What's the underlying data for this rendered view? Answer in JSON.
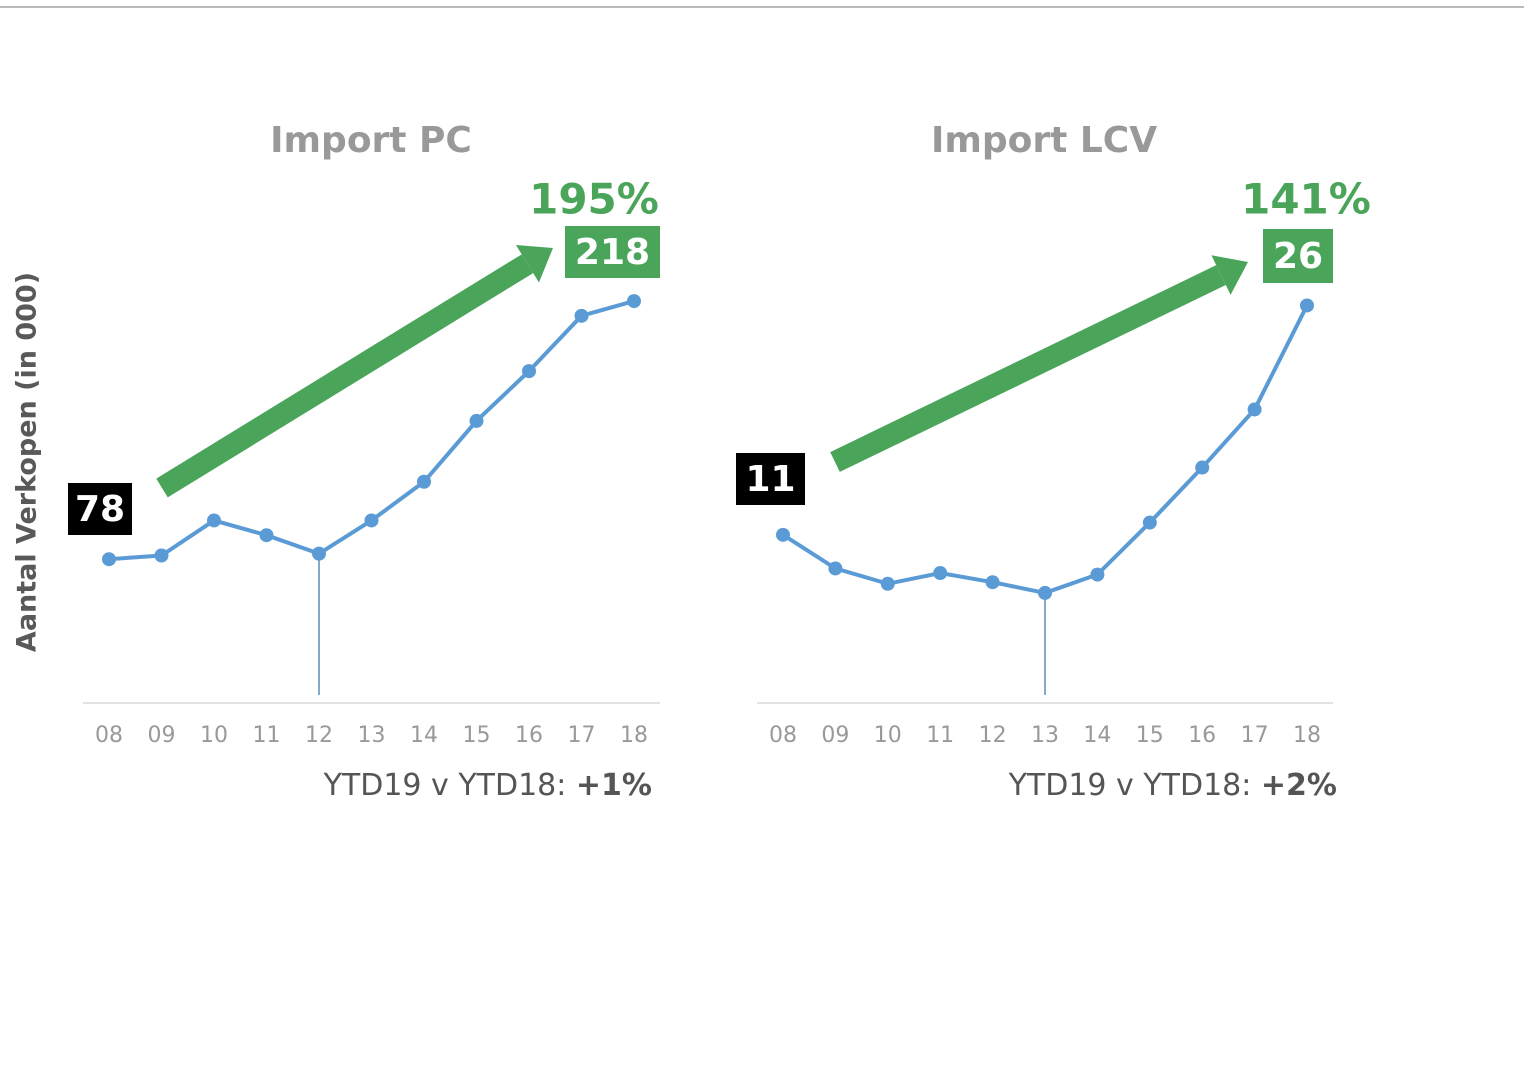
{
  "chart_data": [
    {
      "type": "line",
      "title": "Import PC",
      "ylabel": "Aantal Verkopen  (in 000)",
      "categories": [
        "08",
        "09",
        "10",
        "11",
        "12",
        "13",
        "14",
        "15",
        "16",
        "17",
        "18"
      ],
      "values": [
        78,
        80,
        99,
        91,
        81,
        99,
        120,
        153,
        180,
        210,
        218
      ],
      "color": "#5b9bd5",
      "ylim": [
        0,
        320
      ],
      "marker_category": "12",
      "annotation": "195%",
      "annotation_color": "#4aa55a",
      "footer_label": "YTD19 v YTD18:",
      "footer_value": "+1%"
    },
    {
      "type": "line",
      "title": "Import LCV",
      "categories": [
        "08",
        "09",
        "10",
        "11",
        "12",
        "13",
        "14",
        "15",
        "16",
        "17",
        "18"
      ],
      "values": [
        11,
        8.8,
        7.8,
        8.5,
        7.9,
        7.2,
        8.4,
        11.8,
        15.4,
        19.2,
        26
      ],
      "color": "#5b9bd5",
      "ylim": [
        0,
        38
      ],
      "marker_category": "13",
      "annotation": "141%",
      "annotation_color": "#4aa55a",
      "footer_label": "YTD19 v YTD18:",
      "footer_value": "+2%"
    }
  ]
}
